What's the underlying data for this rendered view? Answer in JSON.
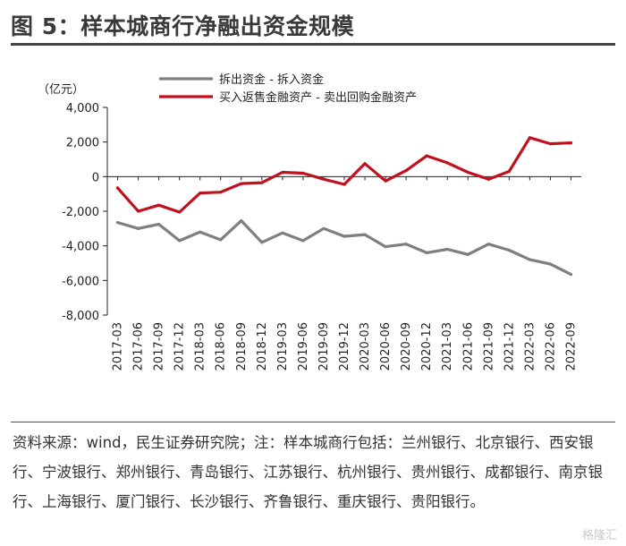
{
  "title": "图 5：样本城商行净融出资金规模",
  "chart_data": {
    "type": "line",
    "unit_label": "（亿元）",
    "x": [
      "2017-03",
      "2017-06",
      "2017-09",
      "2017-12",
      "2018-03",
      "2018-06",
      "2018-09",
      "2018-12",
      "2019-03",
      "2019-06",
      "2019-09",
      "2019-12",
      "2020-03",
      "2020-06",
      "2020-09",
      "2020-12",
      "2021-03",
      "2021-06",
      "2021-09",
      "2021-12",
      "2022-03",
      "2022-06",
      "2022-09"
    ],
    "ylim": [
      -8000,
      4000
    ],
    "yticks": [
      4000,
      2000,
      0,
      -2000,
      -4000,
      -6000,
      -8000
    ],
    "ytick_labels": [
      "4,000",
      "2,000",
      "0",
      "-2,000",
      "-4,000",
      "-6,000",
      "-8,000"
    ],
    "series": [
      {
        "name": "拆出资金 - 拆入资金",
        "color": "#7f7f7f",
        "values": [
          -2650,
          -3000,
          -2750,
          -3700,
          -3200,
          -3650,
          -2550,
          -3800,
          -3250,
          -3700,
          -3000,
          -3450,
          -3350,
          -4050,
          -3900,
          -4400,
          -4200,
          -4500,
          -3900,
          -4250,
          -4800,
          -5050,
          -5650
        ]
      },
      {
        "name": "买入返售金融资产 - 卖出回购金融资产",
        "color": "#c0111f",
        "values": [
          -650,
          -2000,
          -1650,
          -2050,
          -950,
          -900,
          -400,
          -350,
          250,
          200,
          -150,
          -450,
          750,
          -250,
          350,
          1200,
          800,
          250,
          -150,
          300,
          2250,
          1900,
          1950
        ]
      }
    ]
  },
  "footnote": "资料来源：wind，民生证券研究院；注：样本城商行包括：兰州银行、北京银行、西安银行、宁波银行、郑州银行、青岛银行、江苏银行、杭州银行、贵州银行、成都银行、南京银行、上海银行、厦门银行、长沙银行、齐鲁银行、重庆银行、贵阳银行。",
  "watermark": "格隆汇",
  "colors": {
    "accent": "#c0111f",
    "grey": "#7f7f7f"
  }
}
